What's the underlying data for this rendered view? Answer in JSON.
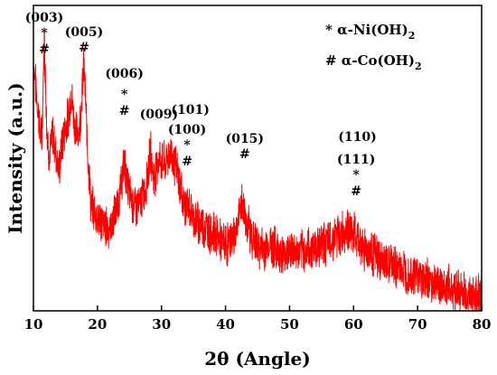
{
  "chart_data": {
    "type": "line",
    "xlabel": "2θ (Angle)",
    "ylabel": "Intensity (a.u.)",
    "xlim": [
      10,
      80
    ],
    "ylim": [
      0,
      100
    ],
    "x_ticks": [
      "10",
      "20",
      "30",
      "40",
      "50",
      "60",
      "70",
      "80"
    ],
    "y_ticks_shown": false,
    "grid": false,
    "line_color": "#ff0000",
    "legend": {
      "placement": "top-right",
      "entries": [
        {
          "symbol": "*",
          "label": "α-Ni(OH)",
          "sub": "2"
        },
        {
          "symbol": "#",
          "label": "α-Co(OH)",
          "sub": "2"
        }
      ]
    },
    "peak_annotations": [
      {
        "label": "(003)",
        "x": 11.7,
        "symbols": [
          "*",
          "#"
        ]
      },
      {
        "label": "(005)",
        "x": 17.9,
        "symbols": [
          "#"
        ]
      },
      {
        "label": "(006)",
        "x": 24.2,
        "symbols": [
          "*",
          "#"
        ]
      },
      {
        "label": "(009)",
        "x": 28.3,
        "symbols": []
      },
      {
        "label": "(101)",
        "x": 34.5,
        "symbols": []
      },
      {
        "label": "(100)",
        "x": 34.0,
        "symbols": [
          "*",
          "#"
        ]
      },
      {
        "label": "(015)",
        "x": 43.0,
        "symbols": [
          "#"
        ]
      },
      {
        "label": "(110)",
        "x": 60.6,
        "symbols": []
      },
      {
        "label": "(111)",
        "x": 60.4,
        "symbols": [
          "*",
          "#"
        ]
      }
    ],
    "series": [
      {
        "points": [
          [
            10.0,
            82
          ],
          [
            10.5,
            70
          ],
          [
            11.0,
            60
          ],
          [
            11.3,
            55
          ],
          [
            11.7,
            90
          ],
          [
            12.1,
            60
          ],
          [
            12.5,
            50
          ],
          [
            13.0,
            58
          ],
          [
            13.5,
            52
          ],
          [
            14.0,
            46
          ],
          [
            14.5,
            55
          ],
          [
            15.0,
            60
          ],
          [
            15.5,
            64
          ],
          [
            15.9,
            72
          ],
          [
            16.3,
            63
          ],
          [
            16.7,
            58
          ],
          [
            17.2,
            60
          ],
          [
            17.9,
            81
          ],
          [
            18.4,
            55
          ],
          [
            19.0,
            34
          ],
          [
            20.0,
            31
          ],
          [
            21.0,
            28
          ],
          [
            22.0,
            27
          ],
          [
            23.0,
            33
          ],
          [
            23.6,
            40
          ],
          [
            24.2,
            48
          ],
          [
            24.8,
            40
          ],
          [
            25.5,
            35
          ],
          [
            26.5,
            34
          ],
          [
            27.5,
            40
          ],
          [
            28.3,
            52
          ],
          [
            28.8,
            43
          ],
          [
            29.5,
            50
          ],
          [
            30.5,
            48
          ],
          [
            31.5,
            52
          ],
          [
            32.5,
            45
          ],
          [
            33.5,
            35
          ],
          [
            34.5,
            33
          ],
          [
            35.5,
            29
          ],
          [
            36.5,
            28
          ],
          [
            37.5,
            26
          ],
          [
            38.5,
            25
          ],
          [
            39.5,
            22
          ],
          [
            40.5,
            22
          ],
          [
            41.5,
            25
          ],
          [
            42.5,
            35
          ],
          [
            43.2,
            30
          ],
          [
            44.0,
            25
          ],
          [
            45.0,
            21
          ],
          [
            46.0,
            20
          ],
          [
            47.0,
            22
          ],
          [
            48.0,
            20
          ],
          [
            49.0,
            18
          ],
          [
            50.0,
            20
          ],
          [
            51.0,
            19
          ],
          [
            52.0,
            19
          ],
          [
            53.0,
            20
          ],
          [
            54.0,
            21
          ],
          [
            55.0,
            22
          ],
          [
            56.0,
            22
          ],
          [
            57.0,
            24
          ],
          [
            58.0,
            25
          ],
          [
            59.0,
            27
          ],
          [
            60.0,
            25
          ],
          [
            61.0,
            22
          ],
          [
            62.0,
            20
          ],
          [
            63.0,
            19
          ],
          [
            64.0,
            17
          ],
          [
            65.0,
            15
          ],
          [
            66.0,
            15
          ],
          [
            67.0,
            14
          ],
          [
            68.0,
            13
          ],
          [
            69.0,
            12
          ],
          [
            70.0,
            12
          ],
          [
            71.0,
            10
          ],
          [
            72.0,
            10
          ],
          [
            73.0,
            9
          ],
          [
            74.0,
            8
          ],
          [
            75.0,
            8
          ],
          [
            76.0,
            7
          ],
          [
            77.0,
            6
          ],
          [
            78.0,
            5
          ],
          [
            79.0,
            5
          ],
          [
            80.0,
            5
          ]
        ]
      }
    ]
  }
}
